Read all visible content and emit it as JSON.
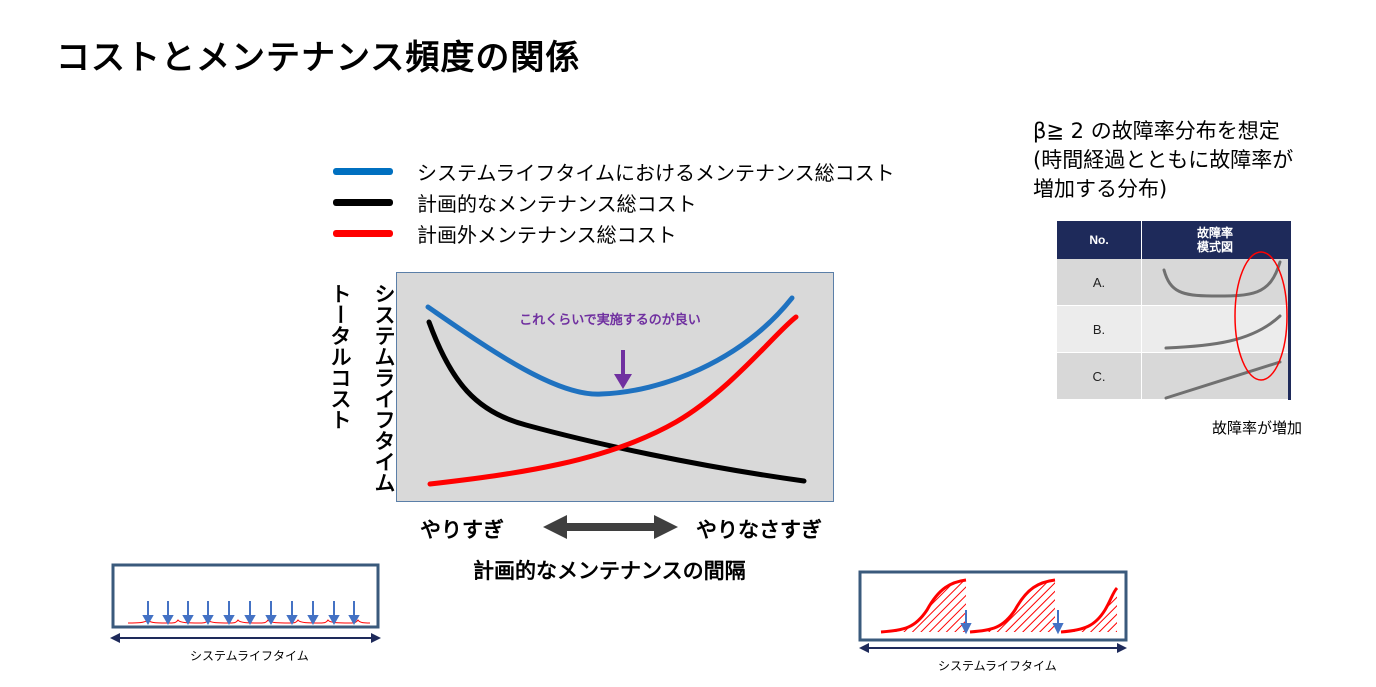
{
  "title": "コストとメンテナンス頻度の関係",
  "legend": [
    {
      "label": "システムライフタイムにおけるメンテナンス総コスト",
      "color": "#0070c0"
    },
    {
      "label": "計画的なメンテナンス総コスト",
      "color": "#000000"
    },
    {
      "label": "計画外メンテナンス総コスト",
      "color": "#ff0000"
    }
  ],
  "chart": {
    "ylabel": "システムライフタイム\nトータルコスト",
    "annotation": "これくらいで実施するのが良い",
    "annotation_color": "#7030a0",
    "plot_bg": "#d9d9d9",
    "plot_border": "#5b7fa8",
    "x_left_label": "やりすぎ",
    "x_right_label": "やりなさすぎ",
    "xlabel": "計画的なメンテナンスの間隔"
  },
  "note": "β≧ 2 の故障率分布を想定\n(時間経過とともに故障率が\n増加する分布)",
  "table": {
    "headers": [
      "No.",
      "故障率\n模式図"
    ],
    "rows": [
      {
        "no": "A."
      },
      {
        "no": "B."
      },
      {
        "no": "C."
      }
    ]
  },
  "table_caption": "故障率が増加",
  "lifetime_label_left": "システムライフタイム",
  "lifetime_label_right": "システムライフタイム",
  "colors": {
    "frame": "#3a5a7c",
    "arrow_blue": "#4472c4",
    "dark_navy": "#1e2a5a"
  }
}
